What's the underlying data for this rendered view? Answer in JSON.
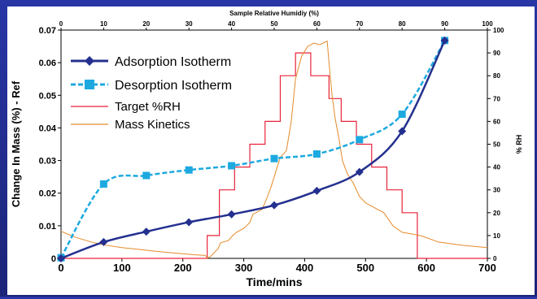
{
  "chart_data": {
    "type": "line",
    "title": "",
    "top_axis_label": "Sample Relative Humidiy (%)",
    "xlabel": "Time/mins",
    "ylabel": "Change In Mass (%) - Ref",
    "y2label": "% RH",
    "xlim": [
      0,
      700
    ],
    "ylim": [
      0,
      0.07
    ],
    "y2lim": [
      0,
      100
    ],
    "toplim": [
      0,
      100
    ],
    "x_ticks": [
      "0",
      "100",
      "200",
      "300",
      "400",
      "500",
      "600",
      "700"
    ],
    "y_ticks": [
      "0",
      "0.01",
      "0.02",
      "0.03",
      "0.04",
      "0.05",
      "0.06",
      "0.07"
    ],
    "y2_ticks": [
      "0",
      "10",
      "20",
      "30",
      "40",
      "50",
      "60",
      "70",
      "80",
      "90",
      "100"
    ],
    "top_ticks": [
      "0",
      "10",
      "20",
      "30",
      "40",
      "50",
      "60",
      "70",
      "80",
      "90",
      "100"
    ],
    "grid": false,
    "legend_position": "top-left",
    "series": [
      {
        "name": "Adsorption Isotherm",
        "axis": "top-left",
        "color": "#24308f",
        "marker": "diamond",
        "x": [
          0,
          10,
          20,
          30,
          40,
          50,
          60,
          70,
          80,
          90
        ],
        "y": [
          0.0,
          0.005,
          0.0082,
          0.0111,
          0.0135,
          0.0163,
          0.0207,
          0.0265,
          0.039,
          0.0668
        ]
      },
      {
        "name": "Desorption Isotherm",
        "axis": "top-left",
        "color": "#1da9e0",
        "marker": "square",
        "x": [
          0,
          10,
          20,
          30,
          40,
          50,
          60,
          70,
          80,
          90
        ],
        "y": [
          0.0002,
          0.0228,
          0.0254,
          0.0271,
          0.0284,
          0.0306,
          0.032,
          0.0364,
          0.0442,
          0.0668
        ]
      },
      {
        "name": "Target %RH",
        "axis": "bottom-right",
        "color": "#e8233a",
        "x": [
          0,
          240,
          240,
          260,
          260,
          285,
          285,
          310,
          310,
          335,
          335,
          360,
          360,
          385,
          385,
          410,
          410,
          440,
          440,
          460,
          460,
          485,
          485,
          510,
          510,
          535,
          535,
          560,
          560,
          585,
          585,
          700
        ],
        "y": [
          0,
          0,
          10,
          10,
          30,
          30,
          40,
          40,
          50,
          50,
          60,
          60,
          80,
          80,
          90,
          90,
          80,
          80,
          70,
          70,
          60,
          60,
          50,
          50,
          40,
          40,
          30,
          30,
          20,
          20,
          0,
          0
        ]
      },
      {
        "name": "Mass Kinetics",
        "axis": "bottom-left",
        "color": "#e58a2a",
        "x": [
          0,
          10,
          25,
          50,
          75,
          100,
          130,
          160,
          190,
          220,
          237,
          240,
          245,
          258,
          262,
          275,
          282,
          288,
          300,
          310,
          315,
          330,
          337,
          345,
          360,
          370,
          378,
          385,
          395,
          405,
          415,
          425,
          432,
          437,
          440,
          445,
          450,
          457,
          462,
          470,
          480,
          490,
          500,
          510,
          520,
          530,
          545,
          560,
          575,
          590,
          620,
          660,
          700
        ],
        "y": [
          0.0083,
          0.0075,
          0.0064,
          0.005,
          0.004,
          0.0033,
          0.0027,
          0.0021,
          0.0016,
          0.0011,
          0.0009,
          0.0001,
          0.0005,
          0.003,
          0.0048,
          0.0055,
          0.007,
          0.008,
          0.0092,
          0.011,
          0.0135,
          0.015,
          0.018,
          0.022,
          0.031,
          0.033,
          0.042,
          0.055,
          0.062,
          0.065,
          0.066,
          0.0655,
          0.0662,
          0.0666,
          0.06,
          0.05,
          0.043,
          0.036,
          0.03,
          0.026,
          0.023,
          0.019,
          0.017,
          0.016,
          0.015,
          0.014,
          0.01,
          0.008,
          0.0075,
          0.007,
          0.005,
          0.004,
          0.0033
        ]
      }
    ]
  }
}
